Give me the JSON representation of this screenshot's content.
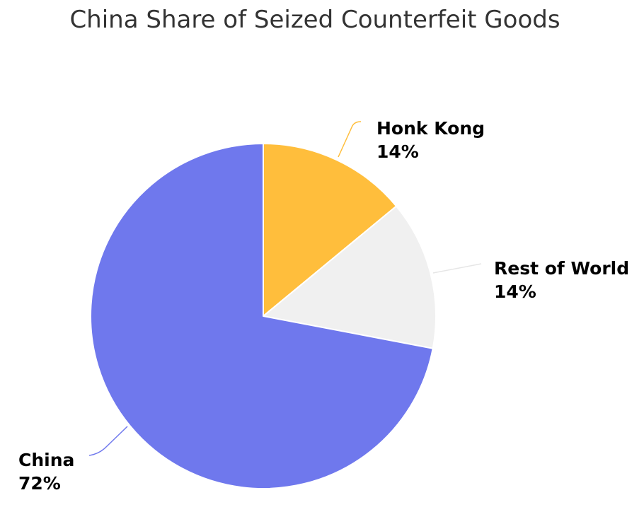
{
  "chart_data": {
    "type": "pie",
    "title": "China Share of Seized Counterfeit Goods",
    "slices": [
      {
        "label": "Honk Kong",
        "value": 14,
        "value_label": "14%",
        "color": "#FFBE3C"
      },
      {
        "label": "Rest of World",
        "value": 14,
        "value_label": "14%",
        "color": "#F0F0F0"
      },
      {
        "label": "China",
        "value": 72,
        "value_label": "72%",
        "color": "#6F78ED"
      }
    ],
    "start_angle": "12 o'clock",
    "direction": "clockwise",
    "legend": "none",
    "data_labels": "outside, name and percent"
  }
}
